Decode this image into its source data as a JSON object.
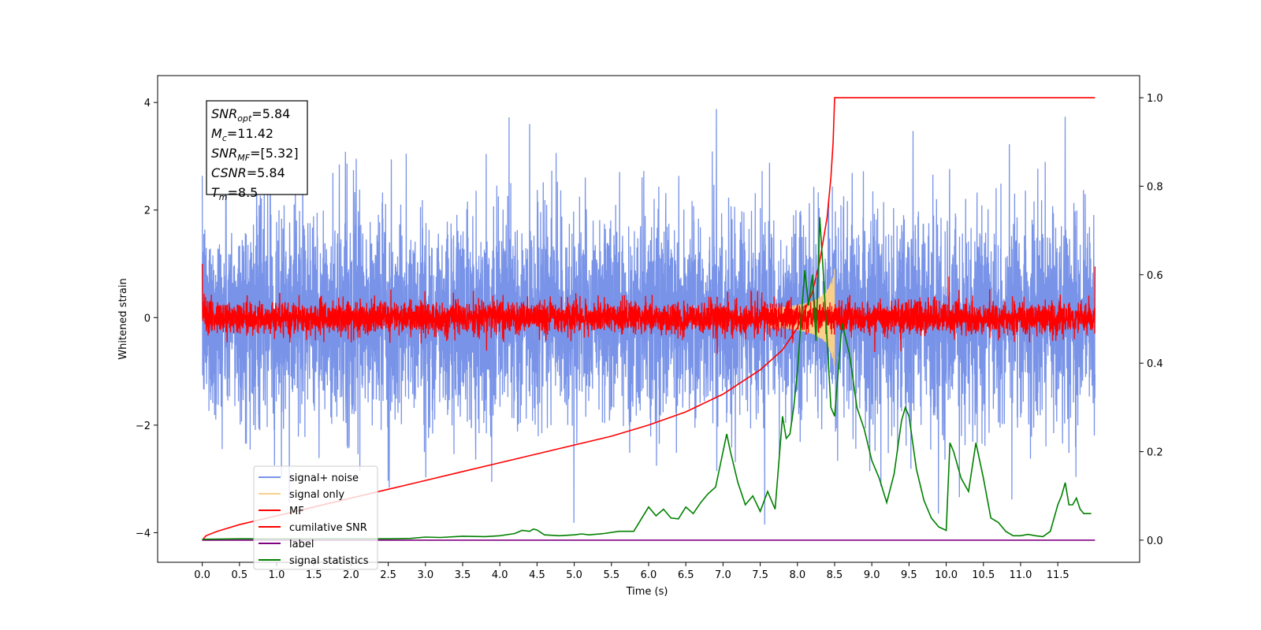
{
  "chart_data": {
    "type": "line",
    "title": "",
    "xlabel": "Time (s)",
    "ylabel": "Whitened strain",
    "y2label": "",
    "xlim": [
      -0.6,
      12.6
    ],
    "ylim": [
      -4.55,
      4.5
    ],
    "y2lim": [
      -0.05,
      1.05
    ],
    "x_ticks": [
      "0.0",
      "0.5",
      "1.0",
      "1.5",
      "2.0",
      "2.5",
      "3.0",
      "3.5",
      "4.0",
      "4.5",
      "5.0",
      "5.5",
      "6.0",
      "6.5",
      "7.0",
      "7.5",
      "8.0",
      "8.5",
      "9.0",
      "9.5",
      "10.0",
      "10.5",
      "11.0",
      "11.5"
    ],
    "y_ticks": [
      "4",
      "2",
      "0",
      "−2",
      "−4"
    ],
    "y2_ticks": [
      "1.0",
      "0.8",
      "0.6",
      "0.4",
      "0.2",
      "0.0"
    ],
    "annotation": {
      "lines": [
        {
          "main": "SNR",
          "sub": "opt",
          "rest": "=5.84"
        },
        {
          "main": "M",
          "sub": "c",
          "rest": "=11.42"
        },
        {
          "main": "SNR",
          "sub": "MF",
          "rest": "=[5.32]"
        },
        {
          "main": "CSNR",
          "sub": "",
          "rest": "=5.84"
        },
        {
          "main": "T",
          "sub": "m",
          "rest": "=8.5"
        }
      ]
    },
    "legend": {
      "placement": "lower-left",
      "entries": [
        {
          "label": "signal+ noise",
          "color": "#7893e8"
        },
        {
          "label": "signal only",
          "color": "#f8d08a"
        },
        {
          "label": "MF",
          "color": "#ff0000"
        },
        {
          "label": "cumilative SNR",
          "color": "#ff0000"
        },
        {
          "label": "label",
          "color": "#800080"
        },
        {
          "label": "signal statistics",
          "color": "#008000"
        }
      ]
    },
    "series": [
      {
        "name": "signal+ noise",
        "axis": "left",
        "color": "#7893e8",
        "t_range": [
          0.0,
          12.0
        ],
        "std": 1.0,
        "style": "noise"
      },
      {
        "name": "signal only",
        "axis": "left",
        "color": "#f8d08a",
        "chirp_end": 8.5,
        "peak_amplitude": 1.0
      },
      {
        "name": "MF",
        "axis": "left",
        "color": "#ff0000",
        "t_range": [
          0.0,
          12.0
        ],
        "std": 0.15,
        "style": "noise"
      },
      {
        "name": "cumilative SNR",
        "axis": "right",
        "color": "#ff0000",
        "x": [
          0.0,
          0.05,
          0.2,
          0.5,
          1.0,
          1.5,
          2.0,
          2.5,
          3.0,
          3.5,
          4.0,
          4.5,
          5.0,
          5.5,
          6.0,
          6.5,
          7.0,
          7.5,
          7.8,
          8.0,
          8.2,
          8.3,
          8.4,
          8.45,
          8.48,
          8.5,
          12.0
        ],
        "y": [
          0.0,
          0.01,
          0.02,
          0.035,
          0.055,
          0.075,
          0.095,
          0.115,
          0.135,
          0.155,
          0.175,
          0.195,
          0.215,
          0.235,
          0.26,
          0.29,
          0.33,
          0.385,
          0.43,
          0.48,
          0.56,
          0.63,
          0.73,
          0.82,
          0.9,
          1.0,
          1.0
        ]
      },
      {
        "name": "label",
        "axis": "right",
        "color": "#800080",
        "x": [
          0.0,
          12.0
        ],
        "y": [
          0.0,
          0.0
        ]
      },
      {
        "name": "signal statistics",
        "axis": "right",
        "color": "#008000",
        "x": [
          0.0,
          0.5,
          1.0,
          1.5,
          2.0,
          2.5,
          2.8,
          3.0,
          3.2,
          3.5,
          3.8,
          4.0,
          4.2,
          4.3,
          4.4,
          4.45,
          4.5,
          4.6,
          4.8,
          5.0,
          5.1,
          5.2,
          5.4,
          5.6,
          5.8,
          6.0,
          6.1,
          6.2,
          6.3,
          6.4,
          6.5,
          6.6,
          6.7,
          6.8,
          6.9,
          7.0,
          7.05,
          7.1,
          7.2,
          7.3,
          7.4,
          7.5,
          7.6,
          7.7,
          7.8,
          7.85,
          7.9,
          7.95,
          8.0,
          8.05,
          8.1,
          8.15,
          8.2,
          8.25,
          8.3,
          8.35,
          8.4,
          8.45,
          8.5,
          8.6,
          8.7,
          8.8,
          8.9,
          9.0,
          9.1,
          9.2,
          9.3,
          9.4,
          9.45,
          9.5,
          9.6,
          9.7,
          9.8,
          9.9,
          10.0,
          10.05,
          10.1,
          10.2,
          10.3,
          10.4,
          10.5,
          10.6,
          10.7,
          10.8,
          10.9,
          11.0,
          11.1,
          11.2,
          11.3,
          11.4,
          11.5,
          11.55,
          11.6,
          11.65,
          11.7,
          11.75,
          11.8,
          11.85,
          11.9,
          11.95
        ],
        "y": [
          0.002,
          0.003,
          0.003,
          0.003,
          0.003,
          0.003,
          0.004,
          0.007,
          0.006,
          0.009,
          0.008,
          0.01,
          0.015,
          0.022,
          0.02,
          0.025,
          0.023,
          0.012,
          0.01,
          0.012,
          0.014,
          0.012,
          0.015,
          0.02,
          0.02,
          0.075,
          0.055,
          0.07,
          0.05,
          0.048,
          0.075,
          0.06,
          0.085,
          0.105,
          0.12,
          0.2,
          0.24,
          0.2,
          0.13,
          0.08,
          0.1,
          0.065,
          0.11,
          0.07,
          0.28,
          0.23,
          0.24,
          0.3,
          0.38,
          0.5,
          0.61,
          0.53,
          0.6,
          0.45,
          0.73,
          0.6,
          0.45,
          0.3,
          0.28,
          0.49,
          0.42,
          0.3,
          0.25,
          0.18,
          0.14,
          0.085,
          0.15,
          0.27,
          0.3,
          0.28,
          0.16,
          0.09,
          0.05,
          0.03,
          0.022,
          0.22,
          0.2,
          0.14,
          0.11,
          0.22,
          0.14,
          0.05,
          0.04,
          0.02,
          0.01,
          0.01,
          0.013,
          0.01,
          0.008,
          0.02,
          0.08,
          0.1,
          0.13,
          0.08,
          0.08,
          0.095,
          0.07,
          0.06,
          0.06,
          0.06
        ]
      }
    ]
  }
}
